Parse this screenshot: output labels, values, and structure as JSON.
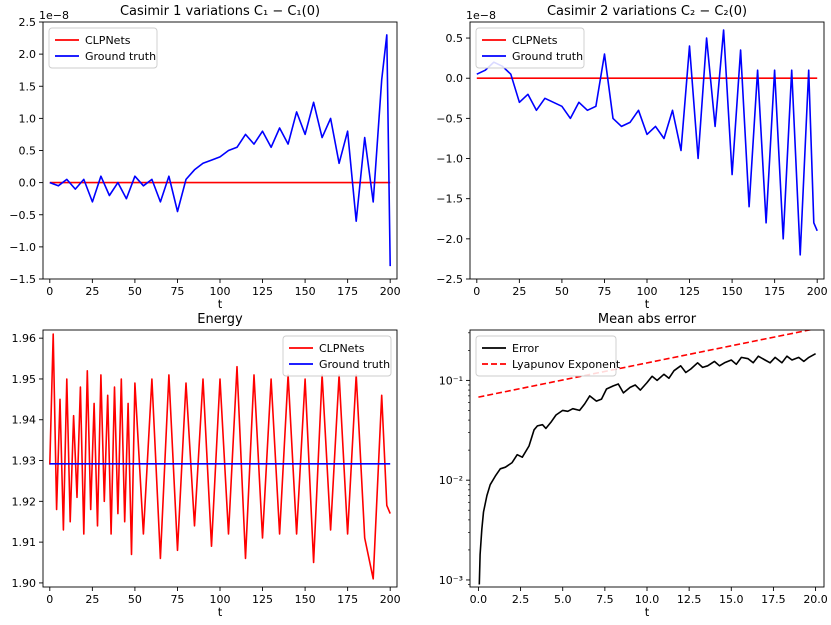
{
  "chart_data": [
    {
      "type": "line",
      "title": "Casimir 1 variations C₁ − C₁(0)",
      "xlabel": "t",
      "ylabel": "",
      "offset_text": "1e−8",
      "xlim": [
        -4,
        204
      ],
      "ylim": [
        -1.5,
        2.5
      ],
      "xticks": [
        0,
        25,
        50,
        75,
        100,
        125,
        150,
        175,
        200
      ],
      "yticks": [
        -1.5,
        -1.0,
        -0.5,
        0.0,
        0.5,
        1.0,
        1.5,
        2.0,
        2.5
      ],
      "ytick_labels": [
        "−1.5",
        "−1.0",
        "−0.5",
        "0.0",
        "0.5",
        "1.0",
        "1.5",
        "2.0",
        "2.5"
      ],
      "legend_position": "top-left",
      "series": [
        {
          "name": "CLPNets",
          "color": "#ff0000",
          "x": [
            0,
            200
          ],
          "y": [
            0,
            0
          ]
        },
        {
          "name": "Ground truth",
          "color": "#0000ff",
          "x": [
            0,
            5,
            10,
            15,
            20,
            25,
            30,
            35,
            40,
            45,
            50,
            55,
            60,
            65,
            70,
            75,
            80,
            85,
            90,
            95,
            100,
            105,
            110,
            115,
            120,
            125,
            130,
            135,
            140,
            145,
            150,
            155,
            160,
            165,
            170,
            175,
            180,
            185,
            190,
            195,
            198,
            200
          ],
          "y": [
            0.0,
            -0.05,
            0.05,
            -0.1,
            0.05,
            -0.3,
            0.1,
            -0.2,
            0.0,
            -0.25,
            0.1,
            -0.05,
            0.05,
            -0.3,
            0.1,
            -0.45,
            0.05,
            0.2,
            0.3,
            0.35,
            0.4,
            0.5,
            0.55,
            0.75,
            0.6,
            0.8,
            0.55,
            0.85,
            0.6,
            1.1,
            0.75,
            1.25,
            0.7,
            1.0,
            0.3,
            0.8,
            -0.6,
            0.7,
            -0.3,
            1.6,
            2.3,
            -1.3
          ]
        }
      ]
    },
    {
      "type": "line",
      "title": "Casimir 2 variations C₂ − C₂(0)",
      "xlabel": "t",
      "ylabel": "",
      "offset_text": "1e−8",
      "xlim": [
        -4,
        204
      ],
      "ylim": [
        -2.5,
        0.7
      ],
      "xticks": [
        0,
        25,
        50,
        75,
        100,
        125,
        150,
        175,
        200
      ],
      "yticks": [
        -2.5,
        -2.0,
        -1.5,
        -1.0,
        -0.5,
        0.0,
        0.5
      ],
      "ytick_labels": [
        "−2.5",
        "−2.0",
        "−1.5",
        "−1.0",
        "−0.5",
        "0.0",
        "0.5"
      ],
      "legend_position": "top-left",
      "series": [
        {
          "name": "CLPNets",
          "color": "#ff0000",
          "x": [
            0,
            200
          ],
          "y": [
            0,
            0
          ]
        },
        {
          "name": "Ground truth",
          "color": "#0000ff",
          "x": [
            0,
            5,
            10,
            15,
            20,
            25,
            30,
            35,
            40,
            45,
            50,
            55,
            60,
            65,
            70,
            75,
            80,
            85,
            90,
            95,
            100,
            105,
            110,
            115,
            120,
            125,
            130,
            135,
            140,
            145,
            150,
            155,
            160,
            165,
            170,
            175,
            180,
            185,
            190,
            195,
            198,
            200
          ],
          "y": [
            0.05,
            0.1,
            0.2,
            0.15,
            0.05,
            -0.3,
            -0.2,
            -0.4,
            -0.25,
            -0.3,
            -0.35,
            -0.5,
            -0.3,
            -0.4,
            -0.35,
            0.3,
            -0.5,
            -0.6,
            -0.55,
            -0.4,
            -0.7,
            -0.6,
            -0.75,
            -0.4,
            -0.9,
            0.4,
            -1.0,
            0.5,
            -0.6,
            0.6,
            -1.2,
            0.35,
            -1.6,
            0.1,
            -1.8,
            0.1,
            -2.0,
            0.1,
            -2.2,
            0.1,
            -1.8,
            -1.9
          ]
        }
      ]
    },
    {
      "type": "line",
      "title": "Energy",
      "xlabel": "t",
      "ylabel": "",
      "xlim": [
        -4,
        204
      ],
      "ylim": [
        1.899,
        1.962
      ],
      "xticks": [
        0,
        25,
        50,
        75,
        100,
        125,
        150,
        175,
        200
      ],
      "yticks": [
        1.9,
        1.91,
        1.92,
        1.93,
        1.94,
        1.95,
        1.96
      ],
      "ytick_labels": [
        "1.90",
        "1.91",
        "1.92",
        "1.93",
        "1.94",
        "1.95",
        "1.96"
      ],
      "legend_position": "top-right",
      "series": [
        {
          "name": "CLPNets",
          "color": "#ff0000",
          "x": [
            0,
            2,
            4,
            6,
            8,
            10,
            12,
            14,
            16,
            18,
            20,
            22,
            24,
            26,
            28,
            30,
            32,
            34,
            36,
            38,
            40,
            42,
            44,
            46,
            48,
            50,
            55,
            60,
            65,
            70,
            75,
            80,
            85,
            90,
            95,
            100,
            105,
            110,
            115,
            120,
            125,
            130,
            135,
            140,
            145,
            150,
            155,
            160,
            165,
            170,
            175,
            180,
            185,
            190,
            195,
            198,
            200
          ],
          "y": [
            1.929,
            1.961,
            1.918,
            1.945,
            1.913,
            1.95,
            1.915,
            1.941,
            1.921,
            1.948,
            1.912,
            1.952,
            1.918,
            1.944,
            1.914,
            1.951,
            1.92,
            1.946,
            1.912,
            1.948,
            1.917,
            1.95,
            1.915,
            1.944,
            1.907,
            1.949,
            1.912,
            1.95,
            1.906,
            1.951,
            1.908,
            1.949,
            1.914,
            1.95,
            1.909,
            1.95,
            1.912,
            1.953,
            1.906,
            1.951,
            1.911,
            1.95,
            1.912,
            1.951,
            1.912,
            1.95,
            1.905,
            1.951,
            1.913,
            1.951,
            1.912,
            1.951,
            1.911,
            1.901,
            1.946,
            1.919,
            1.917
          ]
        },
        {
          "name": "Ground truth",
          "color": "#0000ff",
          "x": [
            0,
            200
          ],
          "y": [
            1.9292,
            1.9292
          ]
        }
      ]
    },
    {
      "type": "line",
      "title": "Mean abs error",
      "xlabel": "t",
      "ylabel": "",
      "xscale": "linear",
      "yscale": "log",
      "xlim": [
        -0.5,
        20.5
      ],
      "ylim": [
        0.00085,
        0.32
      ],
      "xticks": [
        0.0,
        2.5,
        5.0,
        7.5,
        10.0,
        12.5,
        15.0,
        17.5,
        20.0
      ],
      "xtick_labels": [
        "0.0",
        "2.5",
        "5.0",
        "7.5",
        "10.0",
        "12.5",
        "15.0",
        "17.5",
        "20.0"
      ],
      "yticks": [
        0.001,
        0.01,
        0.1
      ],
      "ytick_labels": [
        "10⁻³",
        "10⁻²",
        "10⁻¹"
      ],
      "legend_position": "top-left",
      "series": [
        {
          "name": "Error",
          "color": "#000000",
          "x": [
            0.05,
            0.1,
            0.2,
            0.3,
            0.5,
            0.7,
            1.0,
            1.3,
            1.6,
            2.0,
            2.3,
            2.6,
            3.0,
            3.3,
            3.5,
            3.8,
            4.0,
            4.3,
            4.6,
            5.0,
            5.3,
            5.6,
            6.0,
            6.3,
            6.6,
            7.0,
            7.3,
            7.6,
            8.0,
            8.3,
            8.6,
            9.0,
            9.3,
            9.6,
            10.0,
            10.3,
            10.6,
            11.0,
            11.3,
            11.6,
            12.0,
            12.3,
            12.6,
            13.0,
            13.3,
            13.6,
            14.0,
            14.3,
            14.6,
            15.0,
            15.3,
            15.6,
            16.0,
            16.3,
            16.6,
            17.0,
            17.3,
            17.6,
            18.0,
            18.3,
            18.6,
            19.0,
            19.3,
            19.6,
            20.0
          ],
          "y": [
            0.0009,
            0.0018,
            0.0032,
            0.0048,
            0.007,
            0.009,
            0.011,
            0.013,
            0.0135,
            0.015,
            0.018,
            0.017,
            0.022,
            0.032,
            0.035,
            0.036,
            0.033,
            0.038,
            0.045,
            0.05,
            0.049,
            0.052,
            0.05,
            0.058,
            0.07,
            0.062,
            0.065,
            0.082,
            0.088,
            0.092,
            0.075,
            0.085,
            0.09,
            0.08,
            0.095,
            0.11,
            0.1,
            0.115,
            0.105,
            0.125,
            0.14,
            0.12,
            0.13,
            0.15,
            0.135,
            0.14,
            0.155,
            0.14,
            0.15,
            0.16,
            0.145,
            0.17,
            0.165,
            0.15,
            0.175,
            0.16,
            0.15,
            0.17,
            0.15,
            0.175,
            0.16,
            0.17,
            0.155,
            0.17,
            0.185
          ]
        },
        {
          "name": "Lyapunov Exponent",
          "color": "#ff0000",
          "dashed": true,
          "x": [
            0,
            20
          ],
          "y": [
            0.068,
            0.33
          ]
        }
      ]
    }
  ]
}
